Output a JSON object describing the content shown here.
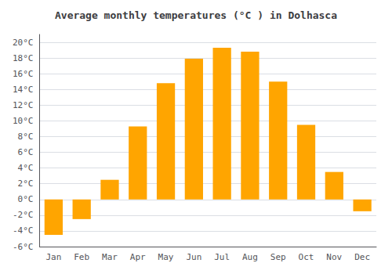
{
  "chart_data": {
    "type": "bar",
    "title": "Average monthly temperatures (°C ) in Dolhasca",
    "categories": [
      "Jan",
      "Feb",
      "Mar",
      "Apr",
      "May",
      "Jun",
      "Jul",
      "Aug",
      "Sep",
      "Oct",
      "Nov",
      "Dec"
    ],
    "values": [
      -4.5,
      -2.5,
      2.5,
      9.3,
      14.8,
      17.9,
      19.3,
      18.8,
      15.0,
      9.5,
      3.5,
      -1.5
    ],
    "color": "#FFA500",
    "ylim": [
      -6,
      21
    ],
    "yticks": [
      {
        "value": -6,
        "label": "-6°C"
      },
      {
        "value": -4,
        "label": "-4°C"
      },
      {
        "value": -2,
        "label": "-2°C"
      },
      {
        "value": 0,
        "label": "0°C"
      },
      {
        "value": 2,
        "label": "2°C"
      },
      {
        "value": 4,
        "label": "4°C"
      },
      {
        "value": 6,
        "label": "6°C"
      },
      {
        "value": 8,
        "label": "8°C"
      },
      {
        "value": 10,
        "label": "10°C"
      },
      {
        "value": 12,
        "label": "12°C"
      },
      {
        "value": 14,
        "label": "14°C"
      },
      {
        "value": 16,
        "label": "16°C"
      },
      {
        "value": 18,
        "label": "18°C"
      },
      {
        "value": 20,
        "label": "20°C"
      }
    ],
    "grid": true
  }
}
